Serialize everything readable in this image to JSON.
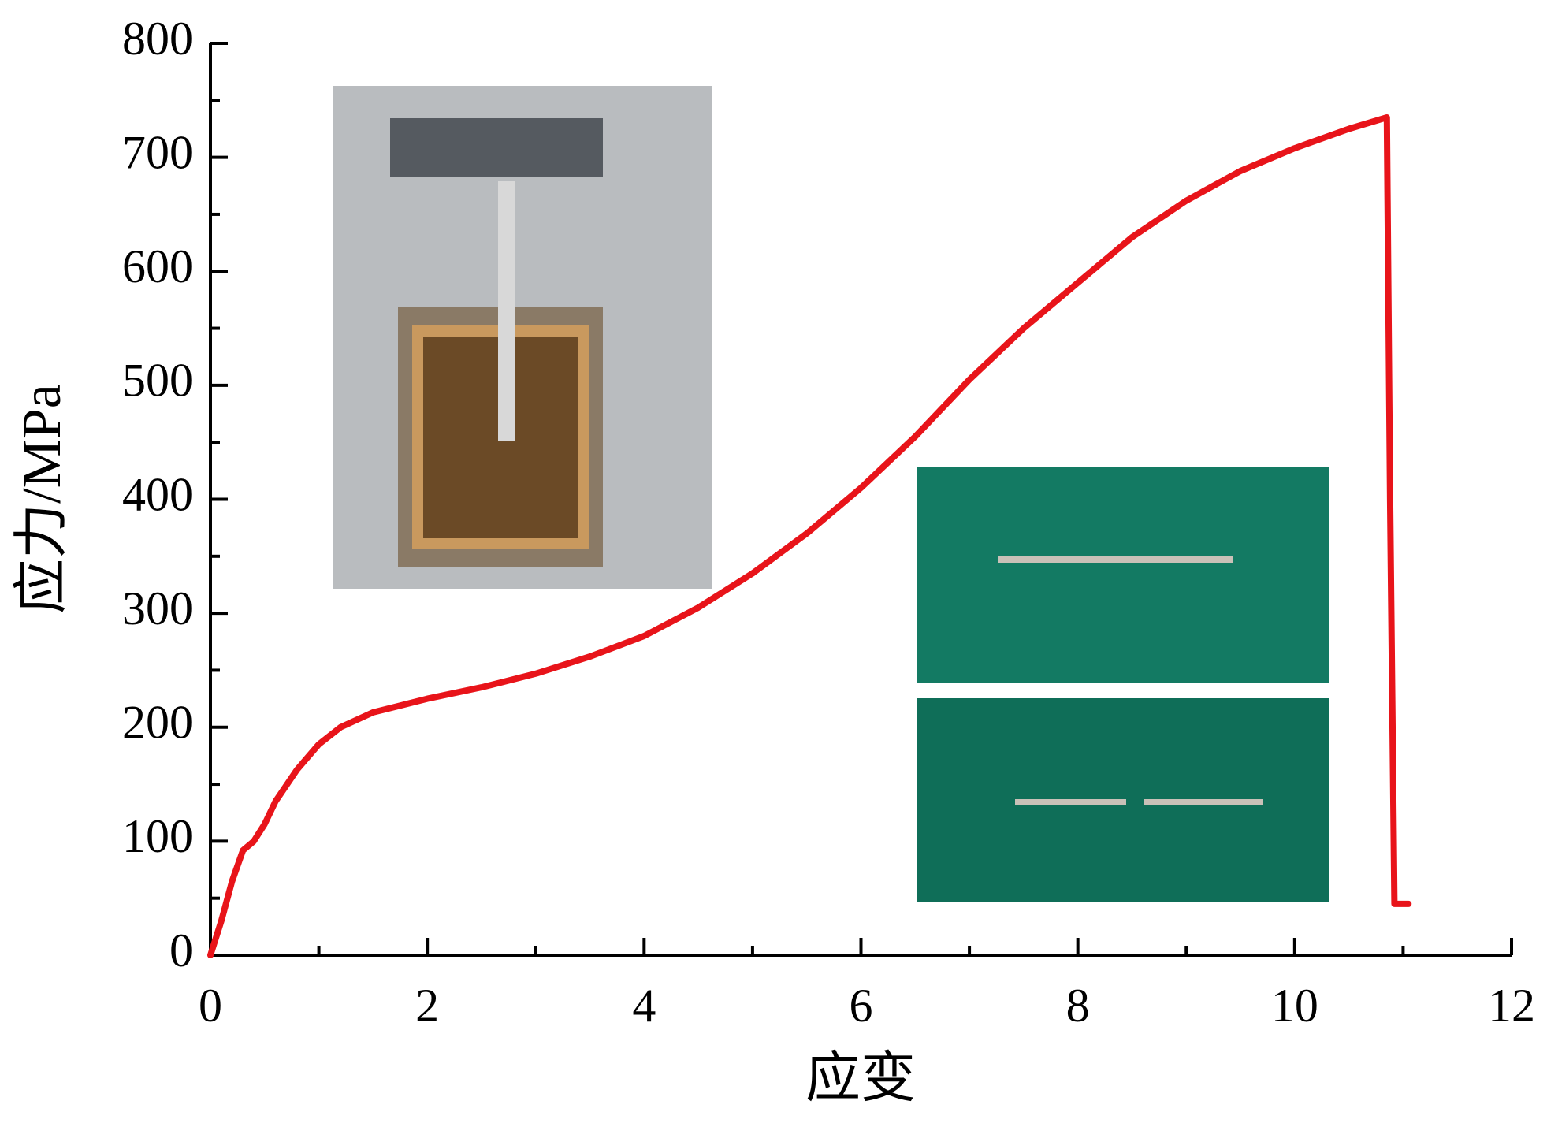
{
  "chart_data": {
    "type": "line",
    "xlabel": "应变",
    "ylabel": "应力/MPa",
    "xlim": [
      0,
      12
    ],
    "ylim": [
      0,
      800
    ],
    "xticks": [
      0,
      2,
      4,
      6,
      8,
      10,
      12
    ],
    "yticks": [
      0,
      100,
      200,
      300,
      400,
      500,
      600,
      700,
      800
    ],
    "series": [
      {
        "color": "#e8141a",
        "x": [
          0,
          0.1,
          0.2,
          0.3,
          0.4,
          0.5,
          0.6,
          0.8,
          1.0,
          1.2,
          1.5,
          2,
          2.5,
          3,
          3.5,
          4,
          4.5,
          5,
          5.5,
          6,
          6.5,
          7,
          7.5,
          8,
          8.5,
          9,
          9.5,
          10,
          10.5,
          10.85,
          10.88,
          10.92,
          11.05
        ],
        "values": [
          0,
          30,
          65,
          92,
          100,
          115,
          135,
          163,
          185,
          200,
          213,
          225,
          235,
          247,
          262,
          280,
          305,
          335,
          370,
          410,
          455,
          505,
          550,
          590,
          630,
          662,
          688,
          708,
          725,
          735,
          400,
          45,
          45
        ]
      }
    ]
  }
}
